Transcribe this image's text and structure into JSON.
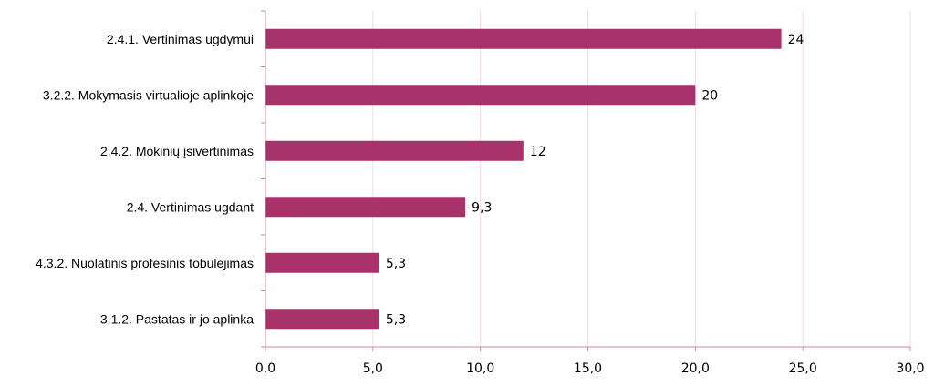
{
  "chart_data": {
    "type": "bar",
    "orientation": "horizontal",
    "categories": [
      "2.4.1. Vertinimas ugdymui",
      "3.2.2. Mokymasis virtualioje aplinkoje",
      "2.4.2. Mokinių įsivertinimas",
      "2.4. Vertinimas ugdant",
      "4.3.2. Nuolatinis profesinis tobulėjimas",
      "3.1.2. Pastatas ir jo aplinka"
    ],
    "values": [
      24,
      20,
      12,
      9.3,
      5.3,
      5.3
    ],
    "value_labels": [
      "24",
      "20",
      "12",
      "9,3",
      "5,3",
      "5,3"
    ],
    "xlim": [
      0,
      30
    ],
    "xticks": [
      0,
      5,
      10,
      15,
      20,
      25,
      30
    ],
    "xtick_labels": [
      "0,0",
      "5,0",
      "10,0",
      "15,0",
      "20,0",
      "25,0",
      "30,0"
    ],
    "grid": "vertical",
    "legend": "none",
    "bar_color": "#a8336b",
    "axis_color": "#d3869f",
    "grid_color": "#eedde4"
  }
}
